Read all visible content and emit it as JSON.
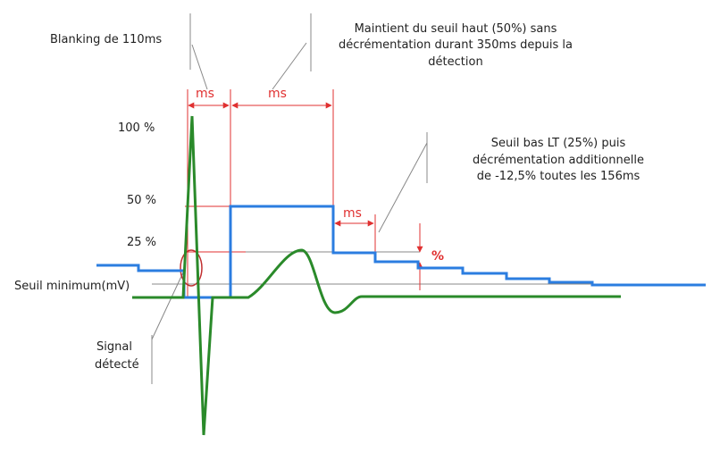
{
  "annotations": {
    "blanking": "Blanking de 110ms",
    "hold": [
      "Maintient du seuil haut (50%) sans",
      "décrémentation durant 350ms depuis la",
      "détection"
    ],
    "low": [
      "Seuil bas LT (25%) puis",
      "décrémentation additionnelle",
      "de -12,5% toutes les 156ms"
    ],
    "ms_labels": [
      "ms",
      "ms",
      "ms"
    ],
    "percent": "%",
    "levels": [
      "100 %",
      "50 %",
      "25 %"
    ],
    "minimum": "Seuil minimum(mV)",
    "signal": [
      "Signal",
      "détecté"
    ]
  }
}
